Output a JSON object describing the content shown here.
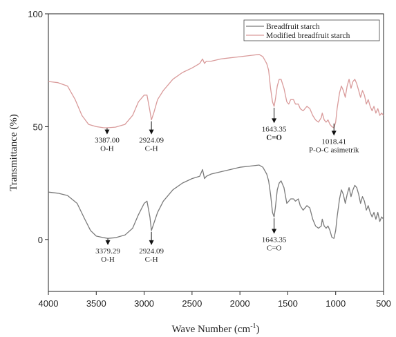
{
  "chart_data": {
    "type": "line",
    "title": "",
    "xlabel": "Wave Number (cm",
    "xlabel_sup": "-1",
    "xlabel_close": ")",
    "ylabel": "Transmittance (%)",
    "xlim": [
      4000,
      500
    ],
    "ylim": [
      -23,
      100
    ],
    "x_ticks": [
      4000,
      3500,
      3000,
      2500,
      2000,
      1500,
      1000,
      500
    ],
    "x_tick_labels": [
      "4000",
      "3500",
      "3000",
      "2500",
      "2000",
      "1500",
      "1000",
      "500"
    ],
    "y_ticks": [
      100,
      50,
      0
    ],
    "y_tick_labels": [
      "100",
      "50",
      "0"
    ],
    "grid": false,
    "legend": "top-right",
    "series": [
      {
        "name": "Breadfruit starch",
        "color": "#7a7a7a",
        "points": [
          [
            4000,
            21
          ],
          [
            3900,
            20.5
          ],
          [
            3800,
            19.5
          ],
          [
            3700,
            16
          ],
          [
            3620,
            9
          ],
          [
            3560,
            4
          ],
          [
            3500,
            1.5
          ],
          [
            3420,
            0.8
          ],
          [
            3380,
            0.5
          ],
          [
            3300,
            0.8
          ],
          [
            3200,
            2
          ],
          [
            3120,
            5
          ],
          [
            3060,
            11
          ],
          [
            3000,
            16
          ],
          [
            2970,
            17
          ],
          [
            2940,
            10
          ],
          [
            2924,
            4
          ],
          [
            2900,
            7
          ],
          [
            2860,
            12
          ],
          [
            2800,
            17
          ],
          [
            2700,
            22
          ],
          [
            2600,
            25
          ],
          [
            2500,
            27
          ],
          [
            2420,
            28
          ],
          [
            2390,
            31
          ],
          [
            2370,
            27
          ],
          [
            2350,
            28
          ],
          [
            2300,
            29
          ],
          [
            2200,
            30
          ],
          [
            2100,
            31
          ],
          [
            2000,
            32
          ],
          [
            1900,
            32.5
          ],
          [
            1800,
            33
          ],
          [
            1760,
            32
          ],
          [
            1720,
            29
          ],
          [
            1700,
            26
          ],
          [
            1680,
            20
          ],
          [
            1660,
            12
          ],
          [
            1643,
            10
          ],
          [
            1630,
            14
          ],
          [
            1610,
            22
          ],
          [
            1590,
            25
          ],
          [
            1570,
            26
          ],
          [
            1540,
            23
          ],
          [
            1510,
            16
          ],
          [
            1490,
            17
          ],
          [
            1470,
            18
          ],
          [
            1440,
            18
          ],
          [
            1420,
            17
          ],
          [
            1390,
            18
          ],
          [
            1370,
            15
          ],
          [
            1340,
            13
          ],
          [
            1300,
            15
          ],
          [
            1270,
            14
          ],
          [
            1240,
            9
          ],
          [
            1210,
            6
          ],
          [
            1180,
            5
          ],
          [
            1150,
            6
          ],
          [
            1140,
            9
          ],
          [
            1120,
            6
          ],
          [
            1100,
            5
          ],
          [
            1080,
            6
          ],
          [
            1060,
            4
          ],
          [
            1040,
            1
          ],
          [
            1018,
            0.5
          ],
          [
            1000,
            4
          ],
          [
            985,
            10
          ],
          [
            960,
            18
          ],
          [
            940,
            22
          ],
          [
            920,
            20
          ],
          [
            900,
            16
          ],
          [
            880,
            20
          ],
          [
            860,
            23
          ],
          [
            840,
            19
          ],
          [
            820,
            22
          ],
          [
            800,
            24
          ],
          [
            780,
            23
          ],
          [
            760,
            20
          ],
          [
            740,
            16
          ],
          [
            720,
            19
          ],
          [
            700,
            17
          ],
          [
            680,
            13
          ],
          [
            660,
            15
          ],
          [
            640,
            12
          ],
          [
            620,
            10
          ],
          [
            600,
            12
          ],
          [
            580,
            9
          ],
          [
            560,
            12
          ],
          [
            540,
            8
          ],
          [
            520,
            10
          ],
          [
            500,
            9
          ]
        ]
      },
      {
        "name": "Modified breadfruit starch",
        "color": "#d99a9a",
        "points": [
          [
            4000,
            70
          ],
          [
            3900,
            69.5
          ],
          [
            3800,
            68
          ],
          [
            3720,
            62
          ],
          [
            3650,
            55
          ],
          [
            3580,
            51
          ],
          [
            3500,
            50
          ],
          [
            3420,
            49.5
          ],
          [
            3387,
            49.5
          ],
          [
            3300,
            49.8
          ],
          [
            3200,
            51
          ],
          [
            3120,
            55
          ],
          [
            3060,
            61
          ],
          [
            3000,
            64
          ],
          [
            2970,
            64
          ],
          [
            2940,
            57
          ],
          [
            2924,
            53
          ],
          [
            2900,
            56
          ],
          [
            2860,
            62
          ],
          [
            2800,
            66
          ],
          [
            2700,
            71
          ],
          [
            2600,
            74
          ],
          [
            2500,
            76
          ],
          [
            2420,
            78
          ],
          [
            2390,
            80
          ],
          [
            2370,
            78
          ],
          [
            2350,
            79
          ],
          [
            2300,
            79
          ],
          [
            2200,
            80
          ],
          [
            2100,
            80.5
          ],
          [
            2000,
            81
          ],
          [
            1900,
            81.5
          ],
          [
            1800,
            82
          ],
          [
            1760,
            81
          ],
          [
            1720,
            78
          ],
          [
            1700,
            75
          ],
          [
            1680,
            67
          ],
          [
            1660,
            61
          ],
          [
            1643,
            59
          ],
          [
            1630,
            62
          ],
          [
            1610,
            68
          ],
          [
            1590,
            71
          ],
          [
            1570,
            71
          ],
          [
            1540,
            67
          ],
          [
            1510,
            61
          ],
          [
            1490,
            60
          ],
          [
            1470,
            62
          ],
          [
            1440,
            62
          ],
          [
            1420,
            60
          ],
          [
            1390,
            60
          ],
          [
            1370,
            58
          ],
          [
            1340,
            57
          ],
          [
            1300,
            59
          ],
          [
            1270,
            58
          ],
          [
            1240,
            55
          ],
          [
            1210,
            53
          ],
          [
            1180,
            52
          ],
          [
            1150,
            54
          ],
          [
            1140,
            56
          ],
          [
            1120,
            53
          ],
          [
            1100,
            52
          ],
          [
            1080,
            53
          ],
          [
            1060,
            51
          ],
          [
            1040,
            50
          ],
          [
            1018,
            49.5
          ],
          [
            1000,
            52
          ],
          [
            985,
            58
          ],
          [
            960,
            65
          ],
          [
            940,
            68
          ],
          [
            920,
            66
          ],
          [
            900,
            63
          ],
          [
            880,
            68
          ],
          [
            860,
            71
          ],
          [
            840,
            67
          ],
          [
            820,
            70
          ],
          [
            800,
            71
          ],
          [
            780,
            69
          ],
          [
            760,
            66
          ],
          [
            740,
            63
          ],
          [
            720,
            66
          ],
          [
            700,
            64
          ],
          [
            680,
            60
          ],
          [
            660,
            62
          ],
          [
            640,
            59
          ],
          [
            620,
            57
          ],
          [
            600,
            59
          ],
          [
            580,
            56
          ],
          [
            560,
            58
          ],
          [
            540,
            55
          ],
          [
            520,
            56
          ],
          [
            500,
            55
          ]
        ]
      }
    ],
    "annotations": [
      {
        "wavenumber": 3387,
        "arrow_from": 50,
        "arrow_to": 49,
        "line1": "3387.00",
        "line2": "O-H",
        "bold": false
      },
      {
        "wavenumber": 2924,
        "arrow_from": 53,
        "arrow_to": 49,
        "line1": "2924.09",
        "line2": "C-H",
        "bold": false
      },
      {
        "wavenumber": 1643,
        "arrow_from": 59,
        "arrow_to": 54,
        "line1": "1643.35",
        "line2": "C=O",
        "bold": true
      },
      {
        "wavenumber": 1018,
        "arrow_from": 52,
        "arrow_to": 48.5,
        "line1": "1018.41",
        "line2": "P-O-C  asimetrik",
        "bold": false
      },
      {
        "wavenumber": 3379,
        "arrow_from": 1,
        "arrow_to": 0,
        "line1": "3379.29",
        "line2": "O-H",
        "bold": false
      },
      {
        "wavenumber": 2924,
        "arrow_from": 4,
        "arrow_to": 0,
        "line1": "2924.09",
        "line2": "C-H",
        "bold": false
      },
      {
        "wavenumber": 1643,
        "arrow_from": 10,
        "arrow_to": 5,
        "line1": "1643.35",
        "line2": "C=O",
        "bold": false
      }
    ]
  }
}
